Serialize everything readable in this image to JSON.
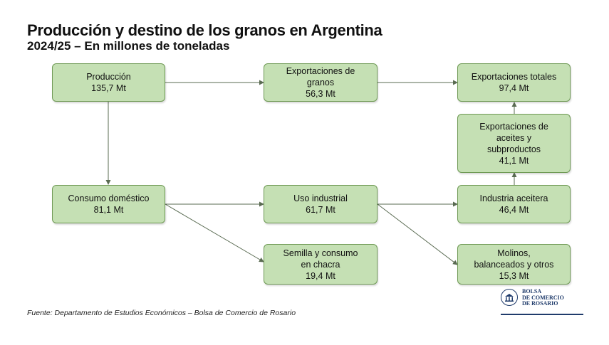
{
  "title": "Producción y destino de los granos en Argentina",
  "subtitle": "2024/25 – En millones de toneladas",
  "nodes": {
    "produccion": {
      "lines": [
        "Producción",
        "135,7 Mt"
      ]
    },
    "export_granos": {
      "lines": [
        "Exportaciones de",
        "granos",
        "56,3 Mt"
      ]
    },
    "export_totales": {
      "lines": [
        "Exportaciones totales",
        "97,4 Mt"
      ]
    },
    "export_aceites": {
      "lines": [
        "Exportaciones de",
        "aceites y",
        "subproductos",
        "41,1 Mt"
      ]
    },
    "consumo": {
      "lines": [
        "Consumo doméstico",
        "81,1 Mt"
      ]
    },
    "uso_industrial": {
      "lines": [
        "Uso industrial",
        "61,7 Mt"
      ]
    },
    "industria_aceitera": {
      "lines": [
        "Industria aceitera",
        "46,4 Mt"
      ]
    },
    "semilla": {
      "lines": [
        "Semilla y consumo",
        "en chacra",
        "19,4 Mt"
      ]
    },
    "molinos": {
      "lines": [
        "Molinos,",
        "balanceados y otros",
        "15,3 Mt"
      ]
    }
  },
  "source": "Fuente: Departamento de Estudios Económicos – Bolsa de Comercio de Rosario",
  "logo": {
    "lines": [
      "BOLSA",
      "DE COMERCIO",
      "DE ROSARIO"
    ],
    "icon": "bcr-seal-icon"
  },
  "colors": {
    "node_fill": "#c5e0b4",
    "node_border": "#6f9a55",
    "arrow": "#5a6b52",
    "logo": "#1f3b6b"
  }
}
